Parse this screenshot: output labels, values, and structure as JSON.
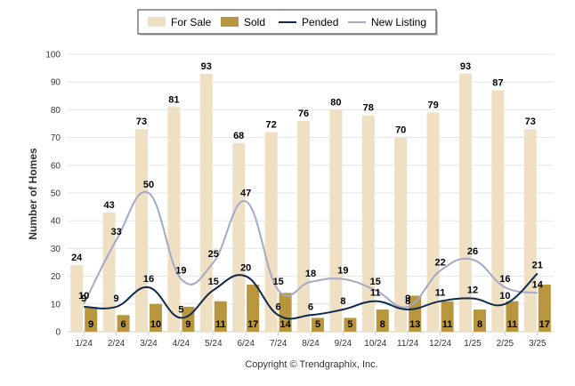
{
  "chart_data": {
    "type": "bar",
    "ylabel": "Number of Homes",
    "ylim": [
      0,
      100
    ],
    "yticks": [
      0,
      10,
      20,
      30,
      40,
      50,
      60,
      70,
      80,
      90,
      100
    ],
    "grid": true,
    "legend_position": "top",
    "categories": [
      "1/24",
      "2/24",
      "3/24",
      "4/24",
      "5/24",
      "6/24",
      "7/24",
      "8/24",
      "9/24",
      "10/24",
      "11/24",
      "12/24",
      "1/25",
      "2/25",
      "3/25"
    ],
    "series": [
      {
        "name": "For Sale",
        "kind": "bar",
        "color": "#efdfc3",
        "values": [
          24,
          43,
          73,
          81,
          93,
          68,
          72,
          76,
          80,
          78,
          70,
          79,
          93,
          87,
          73
        ]
      },
      {
        "name": "Sold",
        "kind": "bar",
        "color": "#b8963e",
        "values": [
          9,
          6,
          10,
          9,
          11,
          17,
          14,
          5,
          5,
          8,
          13,
          11,
          8,
          11,
          17
        ]
      },
      {
        "name": "Pended",
        "kind": "line",
        "color": "#0d2a4c",
        "values": [
          9,
          9,
          16,
          5,
          15,
          20,
          6,
          6,
          8,
          11,
          8,
          11,
          12,
          10,
          21
        ]
      },
      {
        "name": "New Listing",
        "kind": "line",
        "color": "#a3a9c6",
        "values": [
          10,
          33,
          50,
          19,
          25,
          47,
          15,
          18,
          19,
          15,
          9,
          22,
          26,
          16,
          14
        ]
      }
    ]
  },
  "footer": {
    "copyright": "Copyright © Trendgraphix, Inc."
  }
}
